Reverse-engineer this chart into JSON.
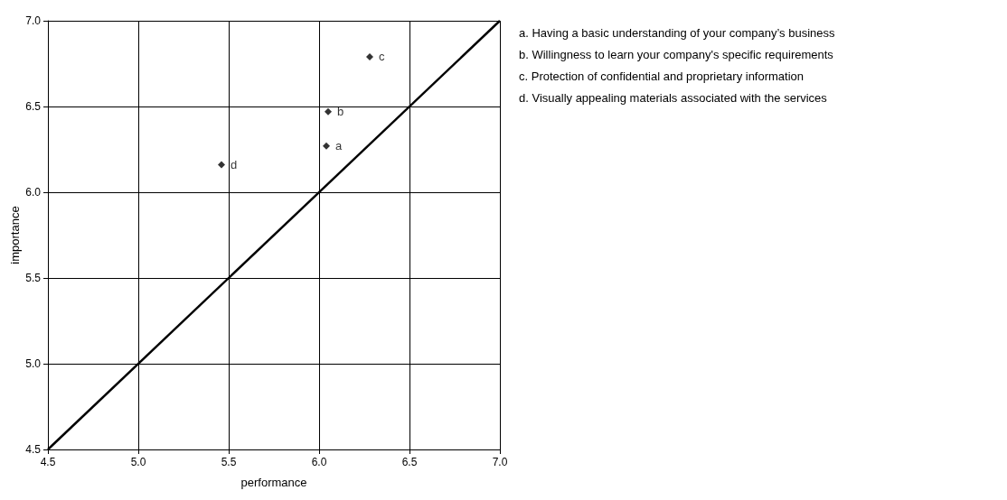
{
  "chart_data": {
    "type": "scatter",
    "xlabel": "performance",
    "ylabel": "importance",
    "xlim": [
      4.5,
      7.0
    ],
    "ylim": [
      4.5,
      7.0
    ],
    "xticks": [
      {
        "value": 4.5,
        "label": "4.5"
      },
      {
        "value": 5,
        "label": "5.0"
      },
      {
        "value": 5.5,
        "label": "5.5"
      },
      {
        "value": 6,
        "label": "6.0"
      },
      {
        "value": 6.5,
        "label": "6.5"
      },
      {
        "value": 7,
        "label": "7.0"
      }
    ],
    "yticks": [
      {
        "value": 4.5,
        "label": "4.5"
      },
      {
        "value": 5,
        "label": "5.0"
      },
      {
        "value": 5.5,
        "label": "5.5"
      },
      {
        "value": 6,
        "label": "6.0"
      },
      {
        "value": 6.5,
        "label": "6.5"
      },
      {
        "value": 7,
        "label": "7.0"
      }
    ],
    "grid": true,
    "series": [
      {
        "marker": "diamond",
        "color": "#000000",
        "x": [
          6.04,
          6.05,
          6.28,
          5.46
        ],
        "values": [
          6.27,
          6.47,
          6.79,
          6.16
        ],
        "value_labels": [
          "a",
          "b",
          "c",
          "d"
        ]
      },
      {
        "type": "line",
        "marker": "none",
        "color": "#000000",
        "x": [
          4.5,
          7.0
        ],
        "values": [
          4.5,
          7.0
        ]
      }
    ],
    "annotations": [
      "a. Having a basic understanding of your company’s business",
      "b. Willingness to learn your company's specific requirements",
      "c. Protection of confidential and proprietary information",
      "d. Visually appealing materials associated with the services"
    ]
  }
}
